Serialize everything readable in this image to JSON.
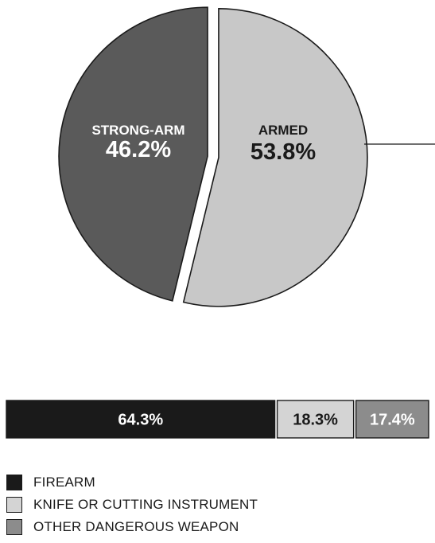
{
  "colors": {
    "strong_arm": "#5a5a5a",
    "armed": "#c8c8c8",
    "firearm": "#1a1a1a",
    "knife": "#d4d4d4",
    "other": "#8c8c8c",
    "outline": "#1a1a1a"
  },
  "chart_data": [
    {
      "type": "pie",
      "slices": [
        {
          "label": "STRONG-ARM",
          "value": 46.2,
          "value_label": "46.2%",
          "color": "#5a5a5a",
          "label_color": "#ffffff"
        },
        {
          "label": "ARMED",
          "value": 53.8,
          "value_label": "53.8%",
          "color": "#c8c8c8",
          "label_color": "#1a1a1a",
          "exploded": true
        }
      ]
    },
    {
      "type": "bar",
      "orientation": "horizontal-stacked",
      "series": [
        {
          "name": "FIREARM",
          "value": 64.3,
          "value_label": "64.3%",
          "color": "#1a1a1a",
          "label_color": "#ffffff"
        },
        {
          "name": "KNIFE OR CUTTING INSTRUMENT",
          "value": 18.3,
          "value_label": "18.3%",
          "color": "#d4d4d4",
          "label_color": "#1a1a1a"
        },
        {
          "name": "OTHER DANGEROUS WEAPON",
          "value": 17.4,
          "value_label": "17.4%",
          "color": "#8c8c8c",
          "label_color": "#ffffff"
        }
      ],
      "legend": "bottom-left"
    }
  ]
}
